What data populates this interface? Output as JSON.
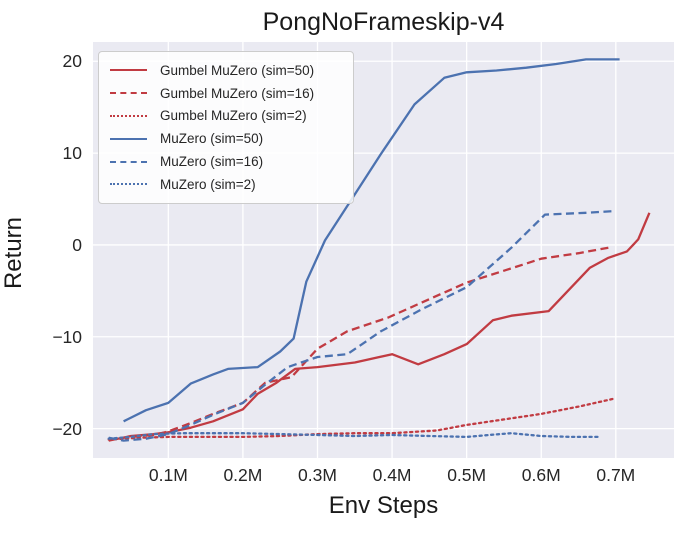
{
  "figure": {
    "title": "PongNoFrameskip-v4",
    "xlabel": "Env Steps",
    "ylabel": "Return"
  },
  "chart_data": {
    "type": "line",
    "title": "PongNoFrameskip-v4",
    "xlabel": "Env Steps",
    "ylabel": "Return",
    "x_unit": "millions of environment steps",
    "xlim": [
      -0.001,
      0.778
    ],
    "ylim": [
      -23.2,
      22.1
    ],
    "x_ticks": [
      0.1,
      0.2,
      0.3,
      0.4,
      0.5,
      0.6,
      0.7
    ],
    "x_tick_labels": [
      "0.1M",
      "0.2M",
      "0.3M",
      "0.4M",
      "0.5M",
      "0.6M",
      "0.7M"
    ],
    "y_ticks": [
      20,
      10,
      0,
      -10,
      -20
    ],
    "y_tick_labels": [
      "20",
      "10",
      "0",
      "−10",
      "−20"
    ],
    "grid": true,
    "grid_color": "#ffffff",
    "plot_background": "#eaeaf2",
    "legend_position": "upper left",
    "colors": {
      "gumbel_red": "#c13b42",
      "muzero_blue": "#4c72b0"
    },
    "series": [
      {
        "name": "Gumbel MuZero (sim=50)",
        "color": "#c13b42",
        "style": "solid",
        "points": [
          [
            0.02,
            -21.3
          ],
          [
            0.05,
            -20.8
          ],
          [
            0.08,
            -20.6
          ],
          [
            0.1,
            -20.4
          ],
          [
            0.13,
            -19.9
          ],
          [
            0.16,
            -19.2
          ],
          [
            0.2,
            -17.9
          ],
          [
            0.22,
            -16.2
          ],
          [
            0.245,
            -15.0
          ],
          [
            0.27,
            -13.5
          ],
          [
            0.3,
            -13.3
          ],
          [
            0.35,
            -12.8
          ],
          [
            0.4,
            -11.9
          ],
          [
            0.435,
            -13.0
          ],
          [
            0.47,
            -11.9
          ],
          [
            0.5,
            -10.8
          ],
          [
            0.535,
            -8.2
          ],
          [
            0.56,
            -7.7
          ],
          [
            0.61,
            -7.2
          ],
          [
            0.665,
            -2.5
          ],
          [
            0.69,
            -1.4
          ],
          [
            0.715,
            -0.7
          ],
          [
            0.73,
            0.6
          ],
          [
            0.745,
            3.5
          ]
        ]
      },
      {
        "name": "Gumbel MuZero (sim=16)",
        "color": "#c13b42",
        "style": "dashed",
        "points": [
          [
            0.02,
            -21.2
          ],
          [
            0.05,
            -20.9
          ],
          [
            0.08,
            -20.7
          ],
          [
            0.1,
            -20.3
          ],
          [
            0.13,
            -19.4
          ],
          [
            0.16,
            -18.4
          ],
          [
            0.2,
            -17.2
          ],
          [
            0.23,
            -15.0
          ],
          [
            0.265,
            -14.4
          ],
          [
            0.3,
            -11.3
          ],
          [
            0.34,
            -9.4
          ],
          [
            0.395,
            -7.9
          ],
          [
            0.45,
            -5.9
          ],
          [
            0.5,
            -4.1
          ],
          [
            0.55,
            -2.8
          ],
          [
            0.6,
            -1.5
          ],
          [
            0.65,
            -0.9
          ],
          [
            0.69,
            -0.3
          ]
        ]
      },
      {
        "name": "Gumbel MuZero (sim=2)",
        "color": "#c13b42",
        "style": "dotted",
        "points": [
          [
            0.02,
            -21.2
          ],
          [
            0.06,
            -21.0
          ],
          [
            0.1,
            -20.9
          ],
          [
            0.15,
            -20.9
          ],
          [
            0.2,
            -20.9
          ],
          [
            0.25,
            -20.8
          ],
          [
            0.3,
            -20.6
          ],
          [
            0.35,
            -20.5
          ],
          [
            0.4,
            -20.5
          ],
          [
            0.46,
            -20.2
          ],
          [
            0.5,
            -19.6
          ],
          [
            0.55,
            -19.0
          ],
          [
            0.6,
            -18.4
          ],
          [
            0.65,
            -17.6
          ],
          [
            0.7,
            -16.7
          ]
        ]
      },
      {
        "name": "MuZero (sim=50)",
        "color": "#4c72b0",
        "style": "solid",
        "points": [
          [
            0.04,
            -19.2
          ],
          [
            0.07,
            -18.0
          ],
          [
            0.1,
            -17.2
          ],
          [
            0.13,
            -15.1
          ],
          [
            0.16,
            -14.1
          ],
          [
            0.18,
            -13.5
          ],
          [
            0.22,
            -13.3
          ],
          [
            0.25,
            -11.6
          ],
          [
            0.268,
            -10.2
          ],
          [
            0.285,
            -4.0
          ],
          [
            0.31,
            0.5
          ],
          [
            0.35,
            5.5
          ],
          [
            0.385,
            9.9
          ],
          [
            0.43,
            15.3
          ],
          [
            0.47,
            18.2
          ],
          [
            0.5,
            18.8
          ],
          [
            0.54,
            19.0
          ],
          [
            0.58,
            19.3
          ],
          [
            0.62,
            19.7
          ],
          [
            0.66,
            20.2
          ],
          [
            0.705,
            20.2
          ]
        ]
      },
      {
        "name": "MuZero (sim=16)",
        "color": "#4c72b0",
        "style": "dashed",
        "points": [
          [
            0.02,
            -21.0
          ],
          [
            0.04,
            -21.3
          ],
          [
            0.07,
            -21.1
          ],
          [
            0.1,
            -20.6
          ],
          [
            0.13,
            -19.6
          ],
          [
            0.16,
            -18.5
          ],
          [
            0.2,
            -17.2
          ],
          [
            0.23,
            -15.2
          ],
          [
            0.26,
            -13.3
          ],
          [
            0.3,
            -12.2
          ],
          [
            0.34,
            -11.9
          ],
          [
            0.385,
            -9.4
          ],
          [
            0.44,
            -7.0
          ],
          [
            0.5,
            -4.6
          ],
          [
            0.56,
            -0.3
          ],
          [
            0.605,
            3.3
          ],
          [
            0.66,
            3.5
          ],
          [
            0.7,
            3.7
          ]
        ]
      },
      {
        "name": "MuZero (sim=2)",
        "color": "#4c72b0",
        "style": "dotted",
        "points": [
          [
            0.02,
            -21.1
          ],
          [
            0.05,
            -20.9
          ],
          [
            0.08,
            -20.6
          ],
          [
            0.12,
            -20.5
          ],
          [
            0.16,
            -20.5
          ],
          [
            0.2,
            -20.5
          ],
          [
            0.25,
            -20.6
          ],
          [
            0.3,
            -20.7
          ],
          [
            0.35,
            -20.8
          ],
          [
            0.4,
            -20.7
          ],
          [
            0.45,
            -20.8
          ],
          [
            0.5,
            -20.9
          ],
          [
            0.53,
            -20.7
          ],
          [
            0.56,
            -20.5
          ],
          [
            0.6,
            -20.8
          ],
          [
            0.64,
            -20.9
          ],
          [
            0.68,
            -20.9
          ]
        ]
      }
    ]
  }
}
